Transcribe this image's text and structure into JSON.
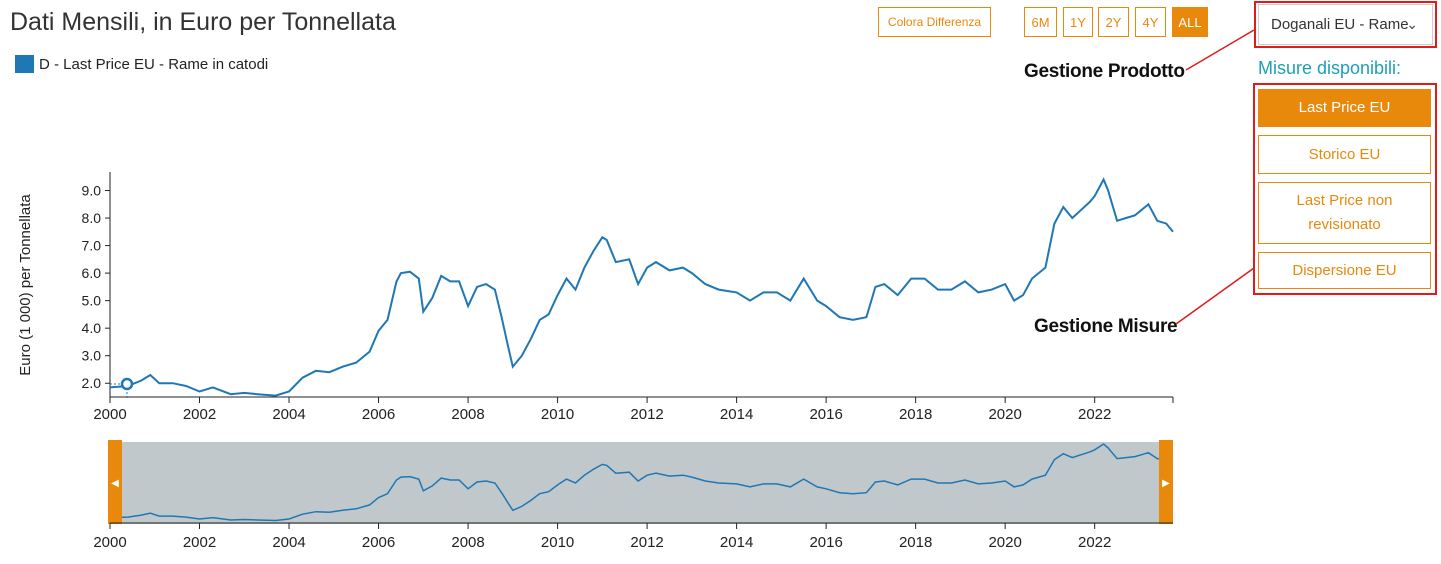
{
  "title": "Dati Mensili, in Euro per Tonnellata",
  "legend": {
    "label": "D - Last Price EU - Rame in catodi",
    "color": "#1f77b4"
  },
  "toolbar": {
    "colora_label": "Colora Differenza",
    "range_buttons": [
      "6M",
      "1Y",
      "2Y",
      "4Y",
      "ALL"
    ],
    "active_range": "ALL"
  },
  "product_select": {
    "value": "Doganali EU - Rame"
  },
  "annotations": {
    "gestione_prodotto": "Gestione Prodotto",
    "gestione_misure": "Gestione Misure"
  },
  "misure": {
    "title": "Misure disponibili:",
    "items": [
      "Last Price EU",
      "Storico EU",
      "Last Price non revisionato",
      "Dispersione EU"
    ],
    "active": "Last Price EU"
  },
  "colors": {
    "accent": "#e8890c",
    "line": "#1f77b4",
    "navigator_bg": "#c1c8cc",
    "annotation": "#e01b1b",
    "misure_title": "#1e9fb8"
  },
  "chart_data": {
    "type": "line",
    "title": "",
    "xlabel": "",
    "ylabel": "Euro (1 000) per Tonnellata",
    "xlim": [
      2000.0,
      2023.75
    ],
    "ylim": [
      1.5,
      9.6
    ],
    "x_ticks": [
      "2000",
      "2002",
      "2004",
      "2006",
      "2008",
      "2010",
      "2012",
      "2014",
      "2016",
      "2018",
      "2020",
      "2022"
    ],
    "y_ticks": [
      "2.0",
      "3.0",
      "4.0",
      "5.0",
      "6.0",
      "7.0",
      "8.0",
      "9.0"
    ],
    "grid": false,
    "series": [
      {
        "name": "D - Last Price EU - Rame in catodi",
        "x": [
          2000.0,
          2000.4,
          2000.7,
          2000.9,
          2001.1,
          2001.4,
          2001.7,
          2002.0,
          2002.3,
          2002.7,
          2003.0,
          2003.3,
          2003.7,
          2004.0,
          2004.3,
          2004.6,
          2004.9,
          2005.2,
          2005.5,
          2005.8,
          2006.0,
          2006.2,
          2006.4,
          2006.5,
          2006.7,
          2006.9,
          2007.0,
          2007.2,
          2007.4,
          2007.6,
          2007.8,
          2008.0,
          2008.2,
          2008.4,
          2008.6,
          2008.75,
          2008.9,
          2009.0,
          2009.2,
          2009.4,
          2009.6,
          2009.8,
          2010.0,
          2010.2,
          2010.4,
          2010.6,
          2010.8,
          2011.0,
          2011.1,
          2011.3,
          2011.6,
          2011.8,
          2012.0,
          2012.2,
          2012.5,
          2012.8,
          2013.0,
          2013.3,
          2013.6,
          2014.0,
          2014.3,
          2014.6,
          2014.9,
          2015.2,
          2015.5,
          2015.8,
          2016.0,
          2016.3,
          2016.6,
          2016.9,
          2017.1,
          2017.3,
          2017.6,
          2017.9,
          2018.2,
          2018.5,
          2018.8,
          2019.1,
          2019.4,
          2019.7,
          2020.0,
          2020.2,
          2020.4,
          2020.6,
          2020.9,
          2021.1,
          2021.3,
          2021.5,
          2021.7,
          2021.9,
          2022.0,
          2022.2,
          2022.3,
          2022.5,
          2022.7,
          2022.9,
          2023.2,
          2023.4,
          2023.6,
          2023.75
        ],
        "y": [
          1.85,
          1.9,
          2.1,
          2.3,
          2.0,
          2.0,
          1.9,
          1.7,
          1.85,
          1.6,
          1.65,
          1.6,
          1.55,
          1.7,
          2.2,
          2.45,
          2.4,
          2.6,
          2.75,
          3.15,
          3.9,
          4.3,
          5.7,
          6.0,
          6.05,
          5.8,
          4.6,
          5.1,
          5.9,
          5.7,
          5.7,
          4.8,
          5.5,
          5.6,
          5.4,
          4.4,
          3.3,
          2.6,
          3.0,
          3.6,
          4.3,
          4.5,
          5.2,
          5.8,
          5.4,
          6.2,
          6.8,
          7.3,
          7.2,
          6.4,
          6.5,
          5.6,
          6.2,
          6.4,
          6.1,
          6.2,
          6.0,
          5.6,
          5.4,
          5.3,
          5.0,
          5.3,
          5.3,
          5.0,
          5.8,
          5.0,
          4.8,
          4.4,
          4.3,
          4.4,
          5.5,
          5.6,
          5.2,
          5.8,
          5.8,
          5.4,
          5.4,
          5.7,
          5.3,
          5.4,
          5.6,
          5.0,
          5.2,
          5.8,
          6.2,
          7.8,
          8.4,
          8.0,
          8.3,
          8.6,
          8.8,
          9.4,
          9.0,
          7.9,
          8.0,
          8.1,
          8.5,
          7.9,
          7.8,
          7.5
        ]
      }
    ]
  }
}
